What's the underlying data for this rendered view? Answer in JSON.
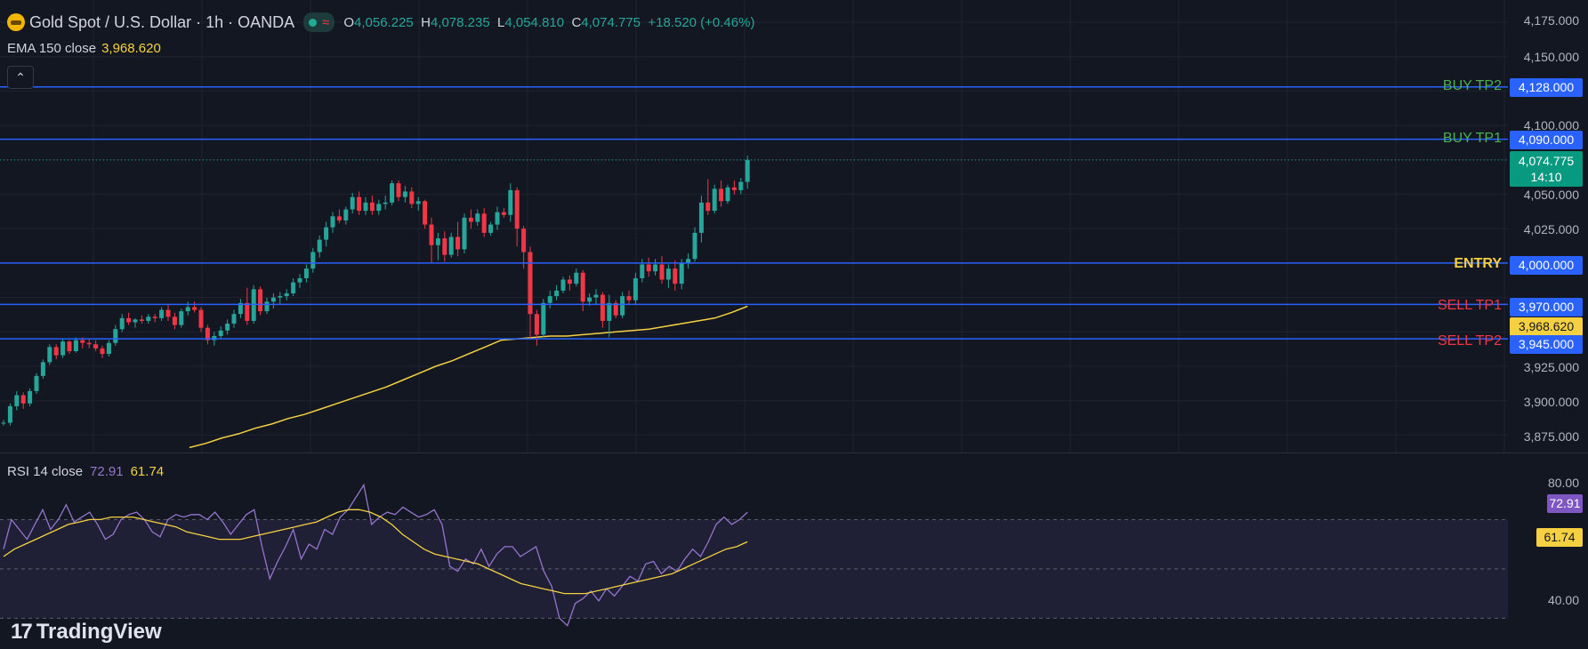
{
  "header": {
    "title": "Gold Spot / U.S. Dollar · 1h · OANDA",
    "status_icon": "market-open-dot",
    "extra_icon": "wave-icon",
    "ohlc": {
      "o_label": "O",
      "o": "4,056.225",
      "h_label": "H",
      "h": "4,078.235",
      "l_label": "L",
      "l": "4,054.810",
      "c_label": "C",
      "c": "4,074.775",
      "change": "+18.520 (+0.46%)"
    }
  },
  "ema": {
    "label": "EMA 150 close",
    "value": "3,968.620"
  },
  "collapse_icon": "chevron-up-icon",
  "rsi": {
    "label": "RSI 14 close",
    "value": "72.91",
    "ma_value": "61.74"
  },
  "price_axis": {
    "ticks": [
      "4,175.000",
      "4,150.000",
      "4,100.000",
      "4,050.000",
      "4,025.000",
      "3,925.000",
      "3,900.000",
      "3,875.000"
    ],
    "current_price": "4,074.775",
    "countdown": "14:10"
  },
  "rsi_axis": {
    "ticks": [
      "80.00",
      "40.00"
    ]
  },
  "levels": [
    {
      "label": "BUY TP2",
      "price": 4128,
      "tag": "4,128.000",
      "color": "#4caf50"
    },
    {
      "label": "BUY TP1",
      "price": 4090,
      "tag": "4,090.000",
      "color": "#4caf50"
    },
    {
      "label": "ENTRY",
      "price": 4000,
      "tag": "4,000.000",
      "color": "#f5d142"
    },
    {
      "label": "SELL TP1",
      "price": 3970,
      "tag": "3,970.000",
      "color": "#f23645"
    },
    {
      "label": "SELL TP2",
      "price": 3945,
      "tag": "3,945.000",
      "color": "#f23645"
    }
  ],
  "colors": {
    "up": "#26a69a",
    "down": "#f23645",
    "level_line": "#2962ff",
    "ema": "#f5d142",
    "rsi": "#9575cd",
    "rsi_ma": "#f5d142"
  },
  "branding": {
    "logo_text": "TradingView"
  },
  "chart_data": {
    "type": "candlestick",
    "title": "Gold Spot / U.S. Dollar · 1h · OANDA",
    "ylim": [
      3863,
      4186
    ],
    "candles": [
      [
        3884,
        3886,
        3882,
        3884
      ],
      [
        3884,
        3898,
        3882,
        3896
      ],
      [
        3896,
        3907,
        3893,
        3904
      ],
      [
        3904,
        3906,
        3894,
        3898
      ],
      [
        3898,
        3909,
        3896,
        3907
      ],
      [
        3907,
        3920,
        3905,
        3918
      ],
      [
        3918,
        3930,
        3916,
        3928
      ],
      [
        3928,
        3941,
        3926,
        3939
      ],
      [
        3939,
        3941,
        3930,
        3933
      ],
      [
        3933,
        3945,
        3931,
        3943
      ],
      [
        3943,
        3944,
        3934,
        3936
      ],
      [
        3936,
        3946,
        3935,
        3944
      ],
      [
        3944,
        3946,
        3938,
        3942
      ],
      [
        3942,
        3945,
        3938,
        3941
      ],
      [
        3941,
        3944,
        3936,
        3938
      ],
      [
        3938,
        3940,
        3931,
        3934
      ],
      [
        3934,
        3944,
        3932,
        3942
      ],
      [
        3942,
        3955,
        3940,
        3952
      ],
      [
        3952,
        3963,
        3950,
        3960
      ],
      [
        3960,
        3964,
        3955,
        3957
      ],
      [
        3957,
        3960,
        3953,
        3959
      ],
      [
        3959,
        3962,
        3956,
        3958
      ],
      [
        3958,
        3963,
        3956,
        3961
      ],
      [
        3961,
        3963,
        3957,
        3960
      ],
      [
        3960,
        3968,
        3958,
        3966
      ],
      [
        3966,
        3970,
        3958,
        3961
      ],
      [
        3961,
        3964,
        3952,
        3955
      ],
      [
        3955,
        3967,
        3953,
        3965
      ],
      [
        3965,
        3972,
        3962,
        3968
      ],
      [
        3968,
        3972,
        3964,
        3966
      ],
      [
        3966,
        3968,
        3950,
        3953
      ],
      [
        3953,
        3955,
        3941,
        3944
      ],
      [
        3944,
        3950,
        3940,
        3947
      ],
      [
        3947,
        3954,
        3945,
        3951
      ],
      [
        3951,
        3959,
        3948,
        3956
      ],
      [
        3956,
        3966,
        3953,
        3963
      ],
      [
        3963,
        3974,
        3960,
        3971
      ],
      [
        3971,
        3982,
        3955,
        3958
      ],
      [
        3958,
        3984,
        3956,
        3981
      ],
      [
        3981,
        3983,
        3962,
        3965
      ],
      [
        3965,
        3975,
        3963,
        3972
      ],
      [
        3972,
        3978,
        3967,
        3975
      ],
      [
        3975,
        3979,
        3970,
        3976
      ],
      [
        3976,
        3981,
        3973,
        3978
      ],
      [
        3978,
        3989,
        3976,
        3986
      ],
      [
        3986,
        3992,
        3982,
        3989
      ],
      [
        3989,
        3999,
        3986,
        3996
      ],
      [
        3996,
        4011,
        3993,
        4008
      ],
      [
        4008,
        4020,
        4004,
        4017
      ],
      [
        4017,
        4030,
        4012,
        4026
      ],
      [
        4026,
        4037,
        4022,
        4034
      ],
      [
        4034,
        4039,
        4029,
        4031
      ],
      [
        4031,
        4041,
        4028,
        4039
      ],
      [
        4039,
        4051,
        4036,
        4048
      ],
      [
        4048,
        4052,
        4035,
        4038
      ],
      [
        4038,
        4048,
        4035,
        4044
      ],
      [
        4044,
        4049,
        4035,
        4038
      ],
      [
        4038,
        4046,
        4035,
        4043
      ],
      [
        4043,
        4049,
        4039,
        4044
      ],
      [
        4044,
        4060,
        4042,
        4058
      ],
      [
        4058,
        4060,
        4045,
        4048
      ],
      [
        4048,
        4056,
        4044,
        4052
      ],
      [
        4052,
        4055,
        4040,
        4043
      ],
      [
        4043,
        4048,
        4038,
        4045
      ],
      [
        4045,
        4046,
        4025,
        4028
      ],
      [
        4028,
        4033,
        4000,
        4013
      ],
      [
        4013,
        4022,
        4002,
        4018
      ],
      [
        4018,
        4023,
        4001,
        4006
      ],
      [
        4006,
        4022,
        4004,
        4019
      ],
      [
        4019,
        4030,
        4005,
        4010
      ],
      [
        4010,
        4036,
        4007,
        4033
      ],
      [
        4033,
        4039,
        4025,
        4030
      ],
      [
        4030,
        4039,
        4027,
        4036
      ],
      [
        4036,
        4040,
        4019,
        4022
      ],
      [
        4022,
        4030,
        4020,
        4028
      ],
      [
        4028,
        4041,
        4024,
        4037
      ],
      [
        4037,
        4040,
        4033,
        4035
      ],
      [
        4035,
        4058,
        4030,
        4053
      ],
      [
        4053,
        4055,
        4012,
        4025
      ],
      [
        4025,
        4027,
        3996,
        4008
      ],
      [
        4008,
        4012,
        3945,
        3963
      ],
      [
        3963,
        3966,
        3940,
        3948
      ],
      [
        3948,
        3974,
        3946,
        3971
      ],
      [
        3971,
        3980,
        3967,
        3976
      ],
      [
        3976,
        3984,
        3973,
        3980
      ],
      [
        3980,
        3990,
        3978,
        3988
      ],
      [
        3988,
        3991,
        3980,
        3985
      ],
      [
        3985,
        3996,
        3983,
        3993
      ],
      [
        3993,
        3995,
        3965,
        3972
      ],
      [
        3972,
        3978,
        3969,
        3975
      ],
      [
        3975,
        3981,
        3970,
        3977
      ],
      [
        3977,
        3979,
        3953,
        3958
      ],
      [
        3958,
        3977,
        3946,
        3971
      ],
      [
        3971,
        3973,
        3960,
        3962
      ],
      [
        3962,
        3979,
        3960,
        3976
      ],
      [
        3976,
        3980,
        3970,
        3973
      ],
      [
        3973,
        3993,
        3970,
        3989
      ],
      [
        3989,
        4003,
        3986,
        3999
      ],
      [
        3999,
        4004,
        3990,
        3994
      ],
      [
        3994,
        4003,
        3991,
        3999
      ],
      [
        3999,
        4005,
        3985,
        3988
      ],
      [
        3988,
        3999,
        3982,
        3996
      ],
      [
        3996,
        4002,
        3980,
        3985
      ],
      [
        3985,
        4003,
        3981,
        4000
      ],
      [
        4000,
        4007,
        3996,
        4003
      ],
      [
        4003,
        4026,
        4001,
        4022
      ],
      [
        4022,
        4049,
        4015,
        4044
      ],
      [
        4044,
        4061,
        4035,
        4038
      ],
      [
        4038,
        4057,
        4036,
        4054
      ],
      [
        4054,
        4060,
        4041,
        4045
      ],
      [
        4045,
        4057,
        4043,
        4055
      ],
      [
        4055,
        4060,
        4050,
        4053
      ],
      [
        4053,
        4062,
        4050,
        4059
      ],
      [
        4059,
        4078,
        4054,
        4075
      ]
    ],
    "ema": [
      3866,
      3869,
      3873,
      3876,
      3880,
      3883,
      3887,
      3890,
      3894,
      3898,
      3902,
      3906,
      3910,
      3915,
      3920,
      3925,
      3929,
      3934,
      3939,
      3944,
      3945,
      3946,
      3947,
      3947,
      3948,
      3949,
      3950,
      3951,
      3952,
      3954,
      3956,
      3958,
      3960,
      3964,
      3968.62
    ],
    "rsi": {
      "ylim": [
        24,
        86
      ],
      "levels": [
        70,
        50,
        30
      ],
      "values": [
        58,
        70,
        66,
        62,
        68,
        74,
        66,
        70,
        76,
        69,
        71,
        73,
        68,
        62,
        64,
        70,
        72,
        73,
        70,
        65,
        63,
        70,
        72,
        71,
        72,
        72,
        70,
        73,
        69,
        64,
        68,
        72,
        74,
        59,
        46,
        53,
        59,
        66,
        54,
        60,
        58,
        66,
        64,
        71,
        74,
        79,
        84,
        68,
        71,
        73,
        72,
        75,
        73,
        71,
        72,
        74,
        68,
        51,
        49,
        54,
        52,
        58,
        51,
        56,
        59,
        59,
        55,
        57,
        59,
        49,
        43,
        30,
        27,
        36,
        38,
        41,
        37,
        42,
        39,
        43,
        47,
        45,
        52,
        53,
        48,
        51,
        49,
        54,
        58,
        55,
        61,
        68,
        71,
        68,
        70,
        73
      ],
      "ma": [
        55,
        58,
        60,
        62,
        64,
        66,
        68,
        69,
        70,
        70,
        71,
        71,
        71,
        70,
        69,
        68,
        67,
        65,
        64,
        63,
        62,
        62,
        62,
        63,
        64,
        65,
        66,
        67,
        68,
        69,
        71,
        73,
        74,
        74,
        73,
        71,
        68,
        64,
        61,
        58,
        56,
        55,
        54,
        53,
        52,
        50,
        48,
        46,
        44,
        43,
        42,
        41,
        40,
        40,
        40,
        41,
        42,
        43,
        44,
        45,
        46,
        47,
        48,
        50,
        52,
        54,
        56,
        58,
        59,
        61
      ]
    }
  }
}
